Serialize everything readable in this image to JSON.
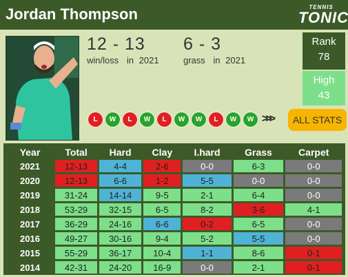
{
  "header": {
    "player_name": "Jordan Thompson",
    "logo_top": "TENNIS",
    "logo_bottom": "TONIC"
  },
  "summary": {
    "winloss_value": "12 - 13",
    "winloss_label": "win/loss",
    "winloss_in": "in",
    "winloss_year": "2021",
    "grass_value": "6 - 3",
    "grass_label": "grass",
    "grass_in": "in",
    "grass_year": "2021"
  },
  "rank": {
    "label": "Rank",
    "value": "78"
  },
  "high": {
    "label": "High",
    "value": "43"
  },
  "recent_results": [
    "L",
    "W",
    "L",
    "W",
    "L",
    "W",
    "W",
    "L",
    "W",
    "W"
  ],
  "chevrons": ">>>",
  "all_stats_label": "ALL STATS",
  "colors": {
    "header": "#3c5a28",
    "win": "#2aa32a",
    "loss": "#e02020",
    "highlight": "#f7b500"
  },
  "table": {
    "headers": [
      "Year",
      "Total",
      "Hard",
      "Clay",
      "I.hard",
      "Grass",
      "Carpet"
    ],
    "rows": [
      {
        "year": "2021",
        "total": "12-13",
        "hard": "4-4",
        "clay": "2-6",
        "ihard": "0-0",
        "grass": "6-3",
        "carpet": "0-0"
      },
      {
        "year": "2020",
        "total": "12-13",
        "hard": "6-6",
        "clay": "1-2",
        "ihard": "5-5",
        "grass": "0-0",
        "carpet": "0-0"
      },
      {
        "year": "2019",
        "total": "31-24",
        "hard": "14-14",
        "clay": "9-5",
        "ihard": "2-1",
        "grass": "6-4",
        "carpet": "0-0"
      },
      {
        "year": "2018",
        "total": "53-29",
        "hard": "32-15",
        "clay": "6-5",
        "ihard": "8-2",
        "grass": "3-6",
        "carpet": "4-1"
      },
      {
        "year": "2017",
        "total": "36-29",
        "hard": "24-16",
        "clay": "6-6",
        "ihard": "0-2",
        "grass": "6-5",
        "carpet": "0-0"
      },
      {
        "year": "2016",
        "total": "49-27",
        "hard": "30-16",
        "clay": "9-4",
        "ihard": "5-2",
        "grass": "5-5",
        "carpet": "0-0"
      },
      {
        "year": "2015",
        "total": "55-29",
        "hard": "36-17",
        "clay": "10-4",
        "ihard": "1-1",
        "grass": "8-6",
        "carpet": "0-1"
      },
      {
        "year": "2014",
        "total": "42-31",
        "hard": "24-20",
        "clay": "16-9",
        "ihard": "0-0",
        "grass": "2-1",
        "carpet": "0-1"
      }
    ]
  }
}
